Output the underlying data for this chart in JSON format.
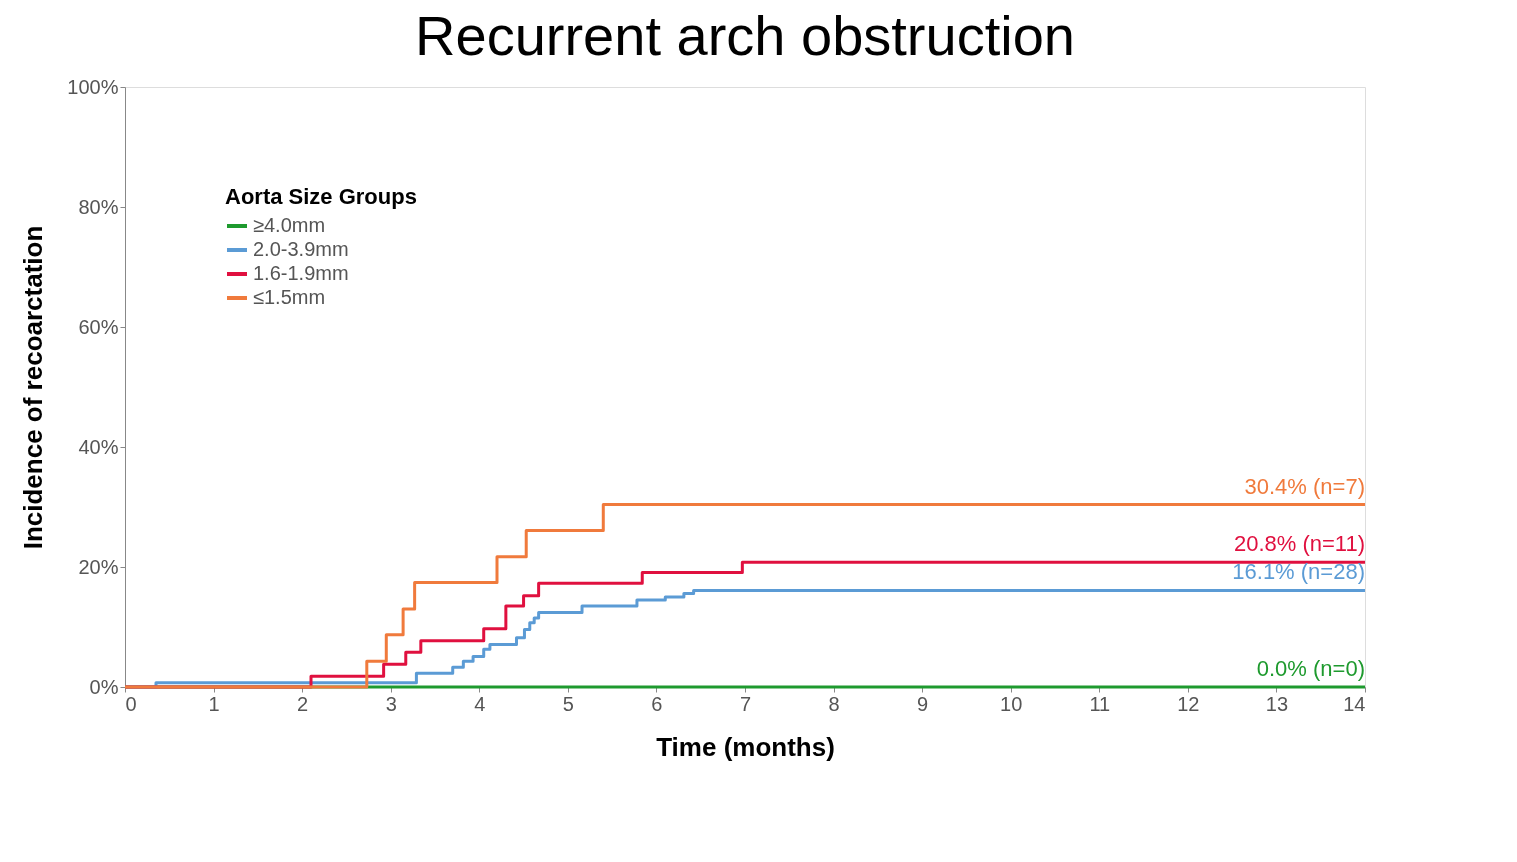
{
  "chart_data": {
    "type": "step",
    "title": "Recurrent arch obstruction",
    "xlabel": "Time (months)",
    "ylabel": "Incidence of recoarctation",
    "legend_title": "Aorta Size Groups",
    "legend": "top left",
    "grid": false,
    "line_style": "solid",
    "marker": "none",
    "xlim": [
      0,
      14
    ],
    "xticks": [
      0,
      1,
      2,
      3,
      4,
      5,
      6,
      7,
      8,
      9,
      10,
      11,
      12,
      13,
      14
    ],
    "ylim": [
      0,
      100
    ],
    "yticks": [
      {
        "value": 0,
        "label": "0%"
      },
      {
        "value": 20,
        "label": "20%"
      },
      {
        "value": 40,
        "label": "40%"
      },
      {
        "value": 60,
        "label": "60%"
      },
      {
        "value": 80,
        "label": "80%"
      },
      {
        "value": 100,
        "label": "100%"
      }
    ],
    "series": [
      {
        "name": "≥4.0mm",
        "color": "#1e9a2e",
        "x": [
          0,
          14
        ],
        "values": [
          0,
          0
        ],
        "value_labels": [
          null,
          "0.0% (n=0)"
        ]
      },
      {
        "name": "2.0-3.9mm",
        "color": "#5b9bd5",
        "x": [
          0,
          0.35,
          3.29,
          3.7,
          3.82,
          3.93,
          4.05,
          4.12,
          4.42,
          4.51,
          4.57,
          4.62,
          4.67,
          5.16,
          5.78,
          6.1,
          6.31,
          6.42,
          14
        ],
        "values": [
          0,
          0.7,
          2.3,
          3.3,
          4.3,
          5.1,
          6.3,
          7.1,
          8.2,
          9.6,
          10.7,
          11.5,
          12.4,
          13.5,
          14.5,
          15.0,
          15.6,
          16.1,
          16.1
        ],
        "value_labels": [
          null,
          null,
          null,
          null,
          null,
          null,
          null,
          null,
          null,
          null,
          null,
          null,
          null,
          null,
          null,
          null,
          null,
          null,
          "16.1% (n=28)"
        ]
      },
      {
        "name": "1.6-1.9mm",
        "color": "#e0103f",
        "x": [
          0,
          2.1,
          2.92,
          3.17,
          3.34,
          4.05,
          4.3,
          4.5,
          4.67,
          5.84,
          6.97,
          14
        ],
        "values": [
          0,
          1.8,
          3.8,
          5.8,
          7.7,
          9.7,
          13.5,
          15.2,
          17.3,
          19.1,
          20.8,
          20.8
        ],
        "value_labels": [
          null,
          null,
          null,
          null,
          null,
          null,
          null,
          null,
          null,
          null,
          null,
          "20.8% (n=11)"
        ]
      },
      {
        "name": "≤1.5mm",
        "color": "#f07a3c",
        "x": [
          0,
          2.73,
          2.95,
          3.14,
          3.27,
          4.2,
          4.53,
          5.4,
          14
        ],
        "values": [
          0,
          4.3,
          8.7,
          13.0,
          17.4,
          21.7,
          26.1,
          30.4,
          30.4
        ],
        "value_labels": [
          null,
          null,
          null,
          null,
          null,
          null,
          null,
          null,
          "30.4% (n=7)"
        ]
      }
    ]
  }
}
